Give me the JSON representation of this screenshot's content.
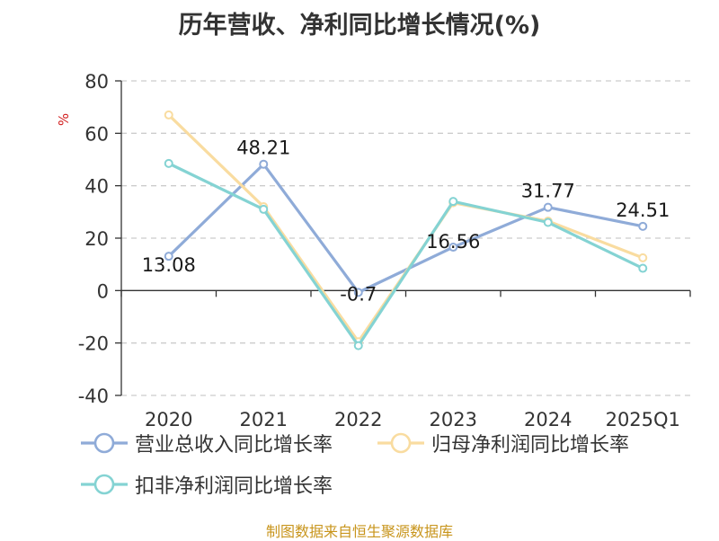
{
  "chart_data": {
    "type": "line",
    "title": "历年营收、净利同比增长情况(%)",
    "ylabel": "%",
    "categories": [
      "2020",
      "2021",
      "2022",
      "2023",
      "2024",
      "2025Q1"
    ],
    "ylim": [
      -40,
      80
    ],
    "yticks": [
      -40,
      -20,
      0,
      20,
      40,
      60,
      80
    ],
    "ytick_labels": [
      "-40",
      "-20",
      "0",
      "20",
      "40",
      "60",
      "80"
    ],
    "grid": true,
    "legend_position": "bottom",
    "series": [
      {
        "name": "营业总收入同比增长率",
        "color": "#8fabd8",
        "values": [
          13.08,
          48.21,
          -0.7,
          16.56,
          31.77,
          24.51
        ],
        "labels": [
          "13.08",
          "48.21",
          "-0.7",
          "16.56",
          "31.77",
          "24.51"
        ]
      },
      {
        "name": "归母净利润同比增长率",
        "color": "#f9dca0",
        "values": [
          67.0,
          32.0,
          -19.5,
          33.5,
          26.5,
          12.5
        ]
      },
      {
        "name": "扣非净利润同比增长率",
        "color": "#84d3d3",
        "values": [
          48.5,
          31.0,
          -21.0,
          34.0,
          26.0,
          8.5
        ]
      }
    ]
  },
  "source": "制图数据来自恒生聚源数据库"
}
